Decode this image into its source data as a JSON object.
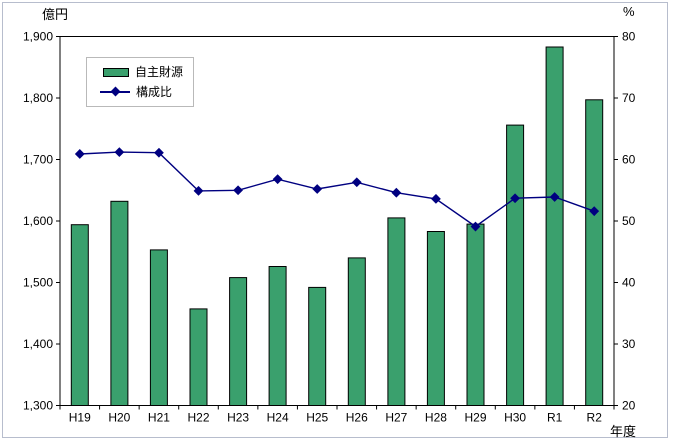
{
  "chart_data": {
    "type": "bar+line",
    "categories": [
      "H19",
      "H20",
      "H21",
      "H22",
      "H23",
      "H24",
      "H25",
      "H26",
      "H27",
      "H28",
      "H29",
      "H30",
      "R1",
      "R2"
    ],
    "series": [
      {
        "name": "自主財源",
        "type": "bar",
        "axis": "left",
        "values": [
          1594,
          1632,
          1553,
          1457,
          1508,
          1526,
          1492,
          1540,
          1605,
          1583,
          1595,
          1756,
          1883,
          1797
        ]
      },
      {
        "name": "構成比",
        "type": "line",
        "axis": "right",
        "values": [
          60.9,
          61.2,
          61.1,
          54.9,
          55.0,
          56.8,
          55.2,
          56.3,
          54.6,
          53.6,
          49.1,
          53.7,
          53.9,
          51.6
        ]
      }
    ],
    "left_axis": {
      "unit_label": "億円",
      "min": 1300,
      "max": 1900,
      "step": 100,
      "tick_labels": [
        "1,900",
        "1,800",
        "1,700",
        "1,600",
        "1,500",
        "1,400",
        "1,300"
      ]
    },
    "right_axis": {
      "unit_label": "%",
      "min": 20,
      "max": 80,
      "step": 10,
      "tick_labels": [
        "80",
        "70",
        "60",
        "50",
        "40",
        "30",
        "20"
      ]
    },
    "x_axis": {
      "title": "年度"
    },
    "grid": false,
    "legend_position": "inside-upper-left",
    "colors": {
      "bar_fill": "#3aa06d",
      "bar_border": "#000000",
      "line": "#000080",
      "marker": "#000080",
      "plot_border": "#000000",
      "outer_border": "#b7bdcd",
      "background": "#ffffff",
      "text": "#000000"
    }
  }
}
